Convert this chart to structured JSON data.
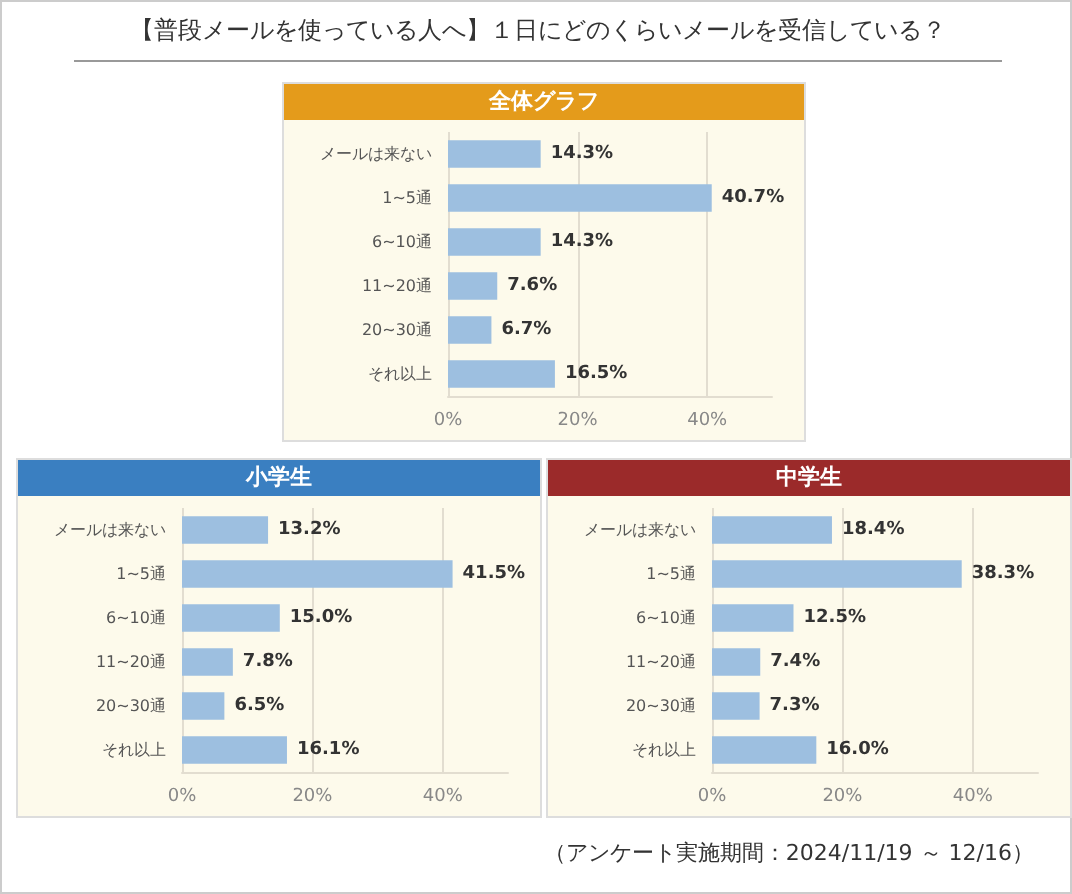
{
  "chart_data": [
    {
      "type": "bar",
      "orientation": "horizontal",
      "title": "【普段メールを使っている人へ】１日にどのくらいメールを受信している？",
      "subtitle": "全体グラフ",
      "categories": [
        "メールは来ない",
        "1~5通",
        "6~10通",
        "11~20通",
        "20~30通",
        "それ以上"
      ],
      "values": [
        14.3,
        40.7,
        14.3,
        7.6,
        6.7,
        16.5
      ],
      "color": "#9dbfe0",
      "value_labels": [
        "14.3%",
        "40.7%",
        "14.3%",
        "7.6%",
        "6.7%",
        "16.5%"
      ],
      "xlim": [
        0,
        50
      ],
      "xticks": [
        {
          "value": 0,
          "label": "0%"
        },
        {
          "value": 20,
          "label": "20%"
        },
        {
          "value": 40,
          "label": "40%"
        }
      ],
      "grid": "x"
    },
    {
      "type": "bar",
      "orientation": "horizontal",
      "title": "小学生",
      "categories": [
        "メールは来ない",
        "1~5通",
        "6~10通",
        "11~20通",
        "20~30通",
        "それ以上"
      ],
      "values": [
        13.2,
        41.5,
        15.0,
        7.8,
        6.5,
        16.1
      ],
      "color": "#9dbfe0",
      "value_labels": [
        "13.2%",
        "41.5%",
        "15.0%",
        "7.8%",
        "6.5%",
        "16.1%"
      ],
      "xlim": [
        0,
        50
      ],
      "xticks": [
        {
          "value": 0,
          "label": "0%"
        },
        {
          "value": 20,
          "label": "20%"
        },
        {
          "value": 40,
          "label": "40%"
        }
      ],
      "grid": "x"
    },
    {
      "type": "bar",
      "orientation": "horizontal",
      "title": "中学生",
      "categories": [
        "メールは来ない",
        "1~5通",
        "6~10通",
        "11~20通",
        "20~30通",
        "それ以上"
      ],
      "values": [
        18.4,
        38.3,
        12.5,
        7.4,
        7.3,
        16.0
      ],
      "color": "#9dbfe0",
      "value_labels": [
        "18.4%",
        "38.3%",
        "12.5%",
        "7.4%",
        "7.3%",
        "16.0%"
      ],
      "xlim": [
        0,
        50
      ],
      "xticks": [
        {
          "value": 0,
          "label": "0%"
        },
        {
          "value": 20,
          "label": "20%"
        },
        {
          "value": 40,
          "label": "40%"
        }
      ],
      "grid": "x",
      "annotations": [
        "（アンケート実施期間：2024/11/19 ～ 12/16）"
      ]
    }
  ]
}
